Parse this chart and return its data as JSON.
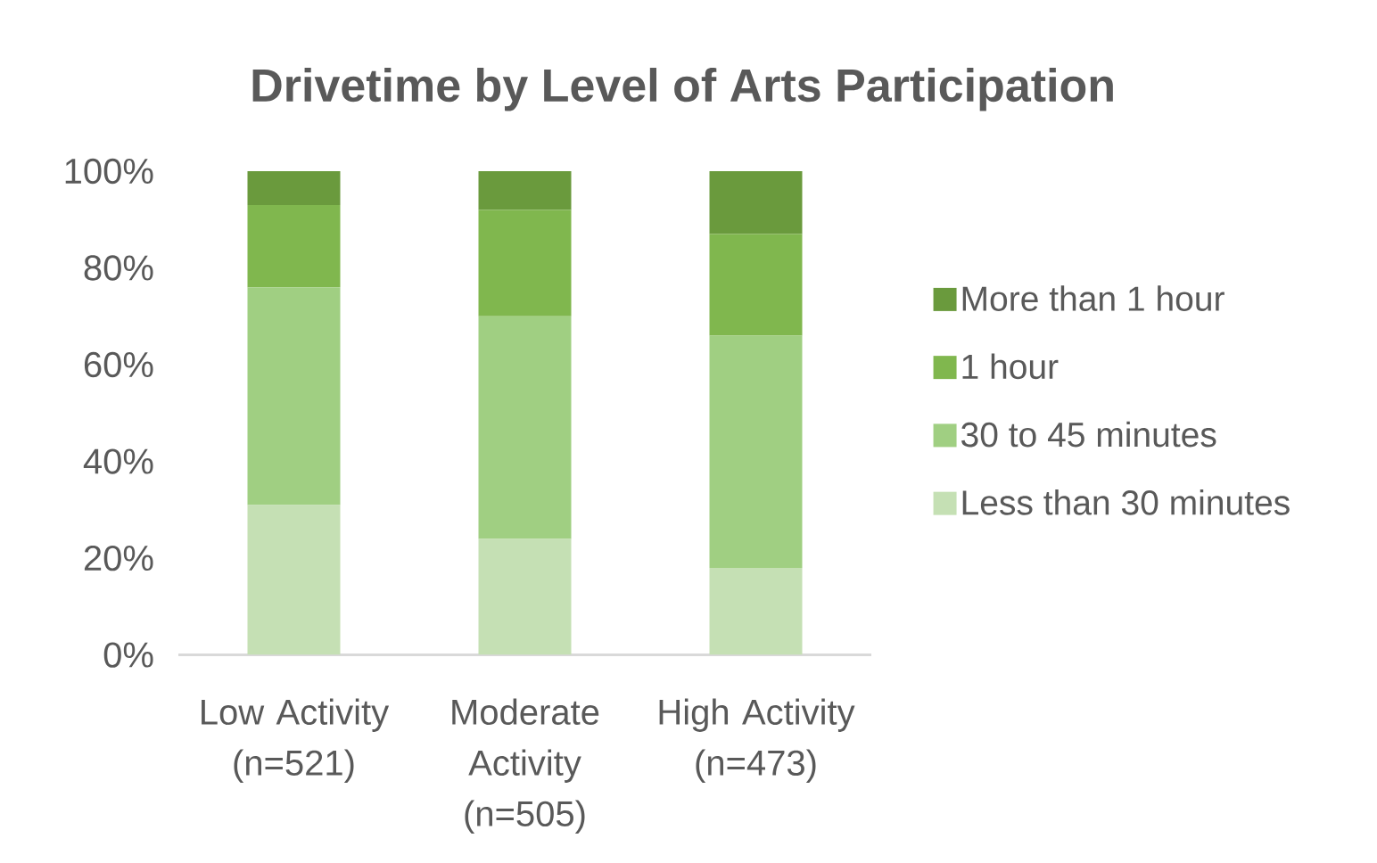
{
  "chart_data": {
    "type": "bar",
    "title": "Drivetime by Level of Arts Participation",
    "categories": [
      "Low Activity (n=521)",
      "Moderate Activity (n=505)",
      "High Activity (n=473)"
    ],
    "stacked": true,
    "series": [
      {
        "name": "Less than 30 minutes",
        "color": "#c5e0b4",
        "values": [
          31,
          24,
          18
        ]
      },
      {
        "name": "30 to 45 minutes",
        "color": "#a0cf82",
        "values": [
          45,
          46,
          48
        ]
      },
      {
        "name": "1 hour",
        "color": "#80b74e",
        "values": [
          17,
          22,
          21
        ]
      },
      {
        "name": "More than 1 hour",
        "color": "#6a9a3d",
        "values": [
          7,
          8,
          13
        ]
      }
    ],
    "ylim": [
      0,
      100
    ],
    "yticks": [
      {
        "value": 0,
        "label": "0%"
      },
      {
        "value": 20,
        "label": "20%"
      },
      {
        "value": 40,
        "label": "40%"
      },
      {
        "value": 60,
        "label": "60%"
      },
      {
        "value": 80,
        "label": "80%"
      },
      {
        "value": 100,
        "label": "100%"
      }
    ],
    "legend": "right",
    "grid": false
  }
}
